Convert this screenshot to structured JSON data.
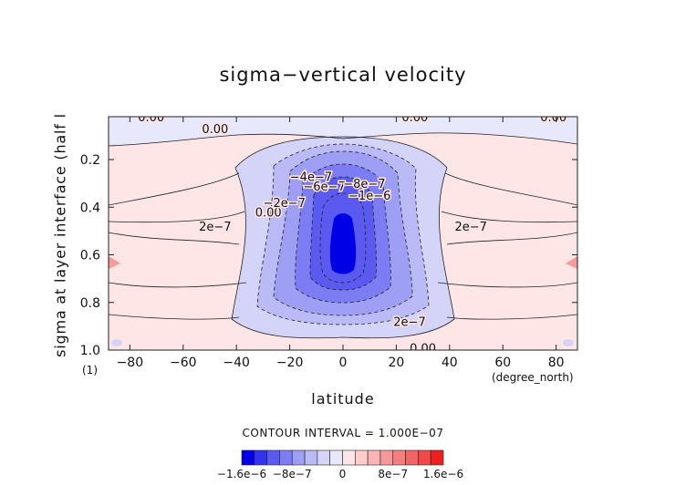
{
  "chart_data": {
    "type": "heatmap",
    "title": "sigma−vertical velocity",
    "xlabel": "latitude",
    "x_unit": "(degree_north)",
    "ylabel": "sigma at layer interface (half l",
    "y_unit": "(1)",
    "x_range": [
      -88,
      88
    ],
    "y_range": [
      0.02,
      1.0
    ],
    "y_inverted": true,
    "x_ticks": [
      -80,
      -60,
      -40,
      -20,
      0,
      20,
      40,
      60,
      80
    ],
    "y_ticks": [
      0.2,
      0.4,
      0.6,
      0.8,
      1.0
    ],
    "x_tick_labels": [
      "−80",
      "−60",
      "−40",
      "−20",
      "0",
      "20",
      "40",
      "60",
      "80"
    ],
    "y_tick_labels": [
      "0.2",
      "0.4",
      "0.6",
      "0.8",
      "1.0"
    ],
    "contour_interval_label": "CONTOUR INTERVAL = 1.000E−07",
    "contour_labels": [
      {
        "text": "0.00",
        "lat": -72,
        "sigma": 0.02
      },
      {
        "text": "0.00",
        "lat": -48,
        "sigma": 0.07
      },
      {
        "text": "0.00",
        "lat": 27,
        "sigma": 0.02
      },
      {
        "text": "0.00",
        "lat": 79,
        "sigma": 0.02
      },
      {
        "text": "2e−7",
        "lat": -48,
        "sigma": 0.48
      },
      {
        "text": "2e−7",
        "lat": 48,
        "sigma": 0.48
      },
      {
        "text": "0.00",
        "lat": -28,
        "sigma": 0.42
      },
      {
        "text": "−2e−7",
        "lat": -22,
        "sigma": 0.38
      },
      {
        "text": "−4e−7",
        "lat": -12,
        "sigma": 0.27
      },
      {
        "text": "−6e−7",
        "lat": -7,
        "sigma": 0.31
      },
      {
        "text": "−8e−7",
        "lat": 8,
        "sigma": 0.3
      },
      {
        "text": "−1e−6",
        "lat": 10,
        "sigma": 0.35
      },
      {
        "text": "2e−7",
        "lat": 25,
        "sigma": 0.88
      },
      {
        "text": "0.00",
        "lat": 30,
        "sigma": 0.99
      }
    ],
    "colorbar": {
      "colors": [
        "#0000e6",
        "#3333ee",
        "#5a5af0",
        "#7d7df3",
        "#9e9ef5",
        "#babaf6",
        "#d4d4f9",
        "#e8e8fc",
        "#ffe6e6",
        "#ffcccc",
        "#fbb3b3",
        "#f79999",
        "#f57f7f",
        "#f26565",
        "#ef4a4a",
        "#ec2020"
      ],
      "tick_labels": [
        "−1.6e−6",
        "−8e−7",
        "0",
        "8e−7",
        "1.6e−6"
      ],
      "tick_values": [
        -1.6e-06,
        -8e-07,
        0,
        8e-07,
        1.6e-06
      ]
    }
  }
}
